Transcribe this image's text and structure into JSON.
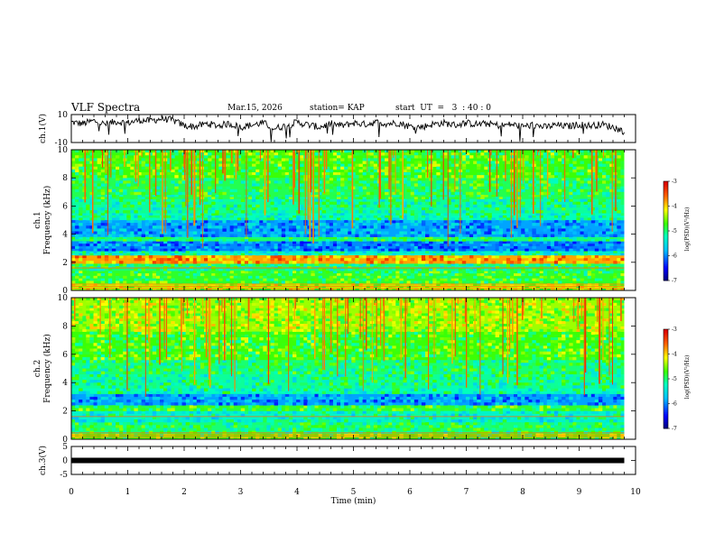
{
  "header": {
    "title": "VLF Spectra",
    "date": "Mar.15, 2026",
    "station": "station= KAP",
    "start": "start  UT  =   3  : 40 : 0"
  },
  "chart_data": [
    {
      "type": "line",
      "panel": "ch1",
      "ylabel": "ch.1(V)",
      "ylim": [
        -10,
        10
      ],
      "yticks": [
        "10",
        "-10"
      ],
      "xlim": [
        0,
        10
      ],
      "x_end": 9.8,
      "description_series": [
        [
          0.0,
          4.5
        ],
        [
          0.2,
          3.5
        ],
        [
          0.4,
          5.5
        ],
        [
          0.6,
          3.0
        ],
        [
          0.8,
          5.0
        ],
        [
          1.0,
          4.0
        ],
        [
          1.2,
          6.0
        ],
        [
          1.4,
          5.5
        ],
        [
          1.6,
          7.0
        ],
        [
          1.8,
          6.0
        ],
        [
          2.0,
          2.0
        ],
        [
          2.2,
          1.5
        ],
        [
          2.4,
          3.5
        ],
        [
          2.6,
          2.0
        ],
        [
          2.8,
          3.5
        ],
        [
          3.0,
          1.0
        ],
        [
          3.2,
          2.5
        ],
        [
          3.4,
          4.0
        ],
        [
          3.6,
          0.0
        ],
        [
          3.8,
          2.0
        ],
        [
          4.0,
          4.5
        ],
        [
          4.2,
          2.5
        ],
        [
          4.4,
          1.0
        ],
        [
          4.6,
          3.5
        ],
        [
          4.8,
          2.0
        ],
        [
          5.0,
          4.0
        ],
        [
          5.2,
          3.0
        ],
        [
          5.4,
          4.5
        ],
        [
          5.6,
          3.5
        ],
        [
          5.8,
          4.0
        ],
        [
          6.0,
          1.5
        ],
        [
          6.2,
          1.0
        ],
        [
          6.4,
          3.0
        ],
        [
          6.6,
          4.0
        ],
        [
          6.8,
          2.5
        ],
        [
          7.0,
          4.0
        ],
        [
          7.2,
          3.0
        ],
        [
          7.4,
          3.5
        ],
        [
          7.6,
          2.0
        ],
        [
          7.8,
          3.0
        ],
        [
          8.0,
          1.5
        ],
        [
          8.2,
          2.5
        ],
        [
          8.4,
          1.0
        ],
        [
          8.6,
          2.5
        ],
        [
          8.8,
          1.5
        ],
        [
          9.0,
          3.0
        ],
        [
          9.2,
          2.0
        ],
        [
          9.4,
          3.0
        ],
        [
          9.6,
          1.0
        ],
        [
          9.8,
          -2.0
        ]
      ]
    },
    {
      "type": "heatmap",
      "panel": "ch1_spectrogram",
      "ylabel": "Frequency (kHz)",
      "channel_label": "ch.1",
      "ylim": [
        0,
        10
      ],
      "yticks": [
        "0",
        "2",
        "4",
        "6",
        "8",
        "10"
      ],
      "xlim": [
        0,
        10
      ],
      "x_end": 9.8,
      "colorbar": {
        "label": "log(PSD)(V²/Hz)",
        "min": -7,
        "max": -3,
        "ticks": [
          "-3",
          "-4",
          "-5",
          "-6",
          "-7"
        ]
      },
      "bands": [
        {
          "from": 0.0,
          "to": 0.5,
          "level": -4.3
        },
        {
          "from": 0.5,
          "to": 1.4,
          "level": -4.8
        },
        {
          "from": 1.4,
          "to": 1.9,
          "level": -5.0
        },
        {
          "from": 1.9,
          "to": 2.5,
          "level": -3.8
        },
        {
          "from": 2.5,
          "to": 2.8,
          "level": -5.3
        },
        {
          "from": 2.8,
          "to": 3.5,
          "level": -6.0
        },
        {
          "from": 3.5,
          "to": 3.8,
          "level": -5.0
        },
        {
          "from": 3.8,
          "to": 5.0,
          "level": -5.9
        },
        {
          "from": 5.0,
          "to": 5.5,
          "level": -5.2
        },
        {
          "from": 5.5,
          "to": 6.5,
          "level": -5.1
        },
        {
          "from": 6.5,
          "to": 6.8,
          "level": -4.9
        },
        {
          "from": 6.8,
          "to": 8.0,
          "level": -4.9
        },
        {
          "from": 8.0,
          "to": 10.0,
          "level": -4.7
        }
      ]
    },
    {
      "type": "heatmap",
      "panel": "ch2_spectrogram",
      "ylabel": "Frequency (kHz)",
      "channel_label": "ch.2",
      "ylim": [
        0,
        10
      ],
      "yticks": [
        "0",
        "2",
        "4",
        "6",
        "8",
        "10"
      ],
      "xlim": [
        0,
        10
      ],
      "x_end": 9.8,
      "colorbar": {
        "label": "log(PSD)(V²/Hz)",
        "min": -7,
        "max": -3,
        "ticks": [
          "-3",
          "-4",
          "-5",
          "-6",
          "-7"
        ]
      },
      "bands": [
        {
          "from": 0.0,
          "to": 0.4,
          "level": -4.6
        },
        {
          "from": 0.4,
          "to": 1.2,
          "level": -5.0
        },
        {
          "from": 1.2,
          "to": 2.0,
          "level": -5.3
        },
        {
          "from": 2.0,
          "to": 2.4,
          "level": -4.8
        },
        {
          "from": 2.4,
          "to": 3.2,
          "level": -5.9
        },
        {
          "from": 3.2,
          "to": 3.6,
          "level": -5.2
        },
        {
          "from": 3.6,
          "to": 4.6,
          "level": -5.1
        },
        {
          "from": 4.6,
          "to": 5.6,
          "level": -5.0
        },
        {
          "from": 5.6,
          "to": 7.6,
          "level": -4.7
        },
        {
          "from": 7.6,
          "to": 10.0,
          "level": -4.4
        }
      ]
    },
    {
      "type": "line",
      "panel": "ch3",
      "ylabel": "ch.3(V)",
      "ylim": [
        -5,
        5
      ],
      "yticks": [
        "5",
        "0",
        "-5"
      ],
      "xlim": [
        0,
        10
      ],
      "x_end": 9.8,
      "values": [
        [
          0,
          0
        ],
        [
          9.8,
          0
        ]
      ]
    }
  ],
  "xaxis": {
    "label": "Time  (min)",
    "ticks": [
      "0",
      "1",
      "2",
      "3",
      "4",
      "5",
      "6",
      "7",
      "8",
      "9",
      "10"
    ]
  }
}
